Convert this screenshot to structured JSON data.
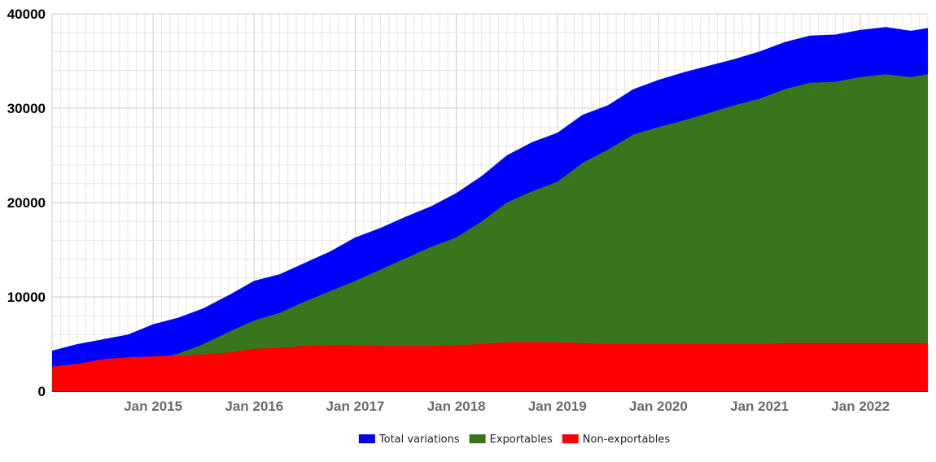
{
  "chart_data": {
    "type": "area",
    "stacked": false,
    "title": "",
    "xlabel": "",
    "ylabel": "",
    "x_start": "2014-01",
    "x_end": "2022-09",
    "xlim": [
      "2014-01",
      "2022-09"
    ],
    "ylim": [
      0,
      40000
    ],
    "grid": true,
    "legend_position": "bottom",
    "x_tick_labels": [
      {
        "date": "2015-01",
        "label": "Jan 2015"
      },
      {
        "date": "2016-01",
        "label": "Jan 2016"
      },
      {
        "date": "2017-01",
        "label": "Jan 2017"
      },
      {
        "date": "2018-01",
        "label": "Jan 2018"
      },
      {
        "date": "2019-01",
        "label": "Jan 2019"
      },
      {
        "date": "2020-01",
        "label": "Jan 2020"
      },
      {
        "date": "2021-01",
        "label": "Jan 2021"
      },
      {
        "date": "2022-01",
        "label": "Jan 2022"
      }
    ],
    "y_ticks": [
      {
        "value": 0,
        "label": "0"
      },
      {
        "value": 10000,
        "label": "10000"
      },
      {
        "value": 20000,
        "label": "20000"
      },
      {
        "value": 30000,
        "label": "30000"
      },
      {
        "value": 40000,
        "label": "40000"
      }
    ],
    "series": [
      {
        "name": "Total variations",
        "color": "#0000ff",
        "points": [
          [
            "2014-01",
            4300
          ],
          [
            "2014-04",
            5000
          ],
          [
            "2014-07",
            5500
          ],
          [
            "2014-10",
            6000
          ],
          [
            "2015-01",
            7100
          ],
          [
            "2015-04",
            7800
          ],
          [
            "2015-07",
            8800
          ],
          [
            "2015-10",
            10200
          ],
          [
            "2016-01",
            11700
          ],
          [
            "2016-04",
            12400
          ],
          [
            "2016-07",
            13600
          ],
          [
            "2016-10",
            14800
          ],
          [
            "2017-01",
            16300
          ],
          [
            "2017-04",
            17300
          ],
          [
            "2017-07",
            18500
          ],
          [
            "2017-10",
            19600
          ],
          [
            "2018-01",
            21000
          ],
          [
            "2018-04",
            22800
          ],
          [
            "2018-07",
            25000
          ],
          [
            "2018-10",
            26400
          ],
          [
            "2019-01",
            27400
          ],
          [
            "2019-04",
            29300
          ],
          [
            "2019-07",
            30300
          ],
          [
            "2019-10",
            32000
          ],
          [
            "2020-01",
            33000
          ],
          [
            "2020-04",
            33800
          ],
          [
            "2020-07",
            34500
          ],
          [
            "2020-10",
            35200
          ],
          [
            "2021-01",
            36000
          ],
          [
            "2021-04",
            37000
          ],
          [
            "2021-07",
            37700
          ],
          [
            "2021-10",
            37800
          ],
          [
            "2022-01",
            38300
          ],
          [
            "2022-04",
            38600
          ],
          [
            "2022-07",
            38200
          ],
          [
            "2022-09",
            38500
          ]
        ]
      },
      {
        "name": "Exportables",
        "color": "#38761d",
        "points": [
          [
            "2014-01",
            1600
          ],
          [
            "2014-04",
            2200
          ],
          [
            "2014-07",
            2300
          ],
          [
            "2014-10",
            2500
          ],
          [
            "2015-01",
            3400
          ],
          [
            "2015-04",
            4000
          ],
          [
            "2015-07",
            5000
          ],
          [
            "2015-10",
            6300
          ],
          [
            "2016-01",
            7500
          ],
          [
            "2016-04",
            8300
          ],
          [
            "2016-07",
            9500
          ],
          [
            "2016-10",
            10600
          ],
          [
            "2017-01",
            11700
          ],
          [
            "2017-04",
            12900
          ],
          [
            "2017-07",
            14100
          ],
          [
            "2017-10",
            15300
          ],
          [
            "2018-01",
            16300
          ],
          [
            "2018-04",
            18000
          ],
          [
            "2018-07",
            20000
          ],
          [
            "2018-10",
            21200
          ],
          [
            "2019-01",
            22200
          ],
          [
            "2019-04",
            24200
          ],
          [
            "2019-07",
            25600
          ],
          [
            "2019-10",
            27200
          ],
          [
            "2020-01",
            28000
          ],
          [
            "2020-04",
            28700
          ],
          [
            "2020-07",
            29500
          ],
          [
            "2020-10",
            30300
          ],
          [
            "2021-01",
            31000
          ],
          [
            "2021-04",
            32000
          ],
          [
            "2021-07",
            32700
          ],
          [
            "2021-10",
            32800
          ],
          [
            "2022-01",
            33300
          ],
          [
            "2022-04",
            33600
          ],
          [
            "2022-07",
            33300
          ],
          [
            "2022-09",
            33600
          ]
        ]
      },
      {
        "name": "Non-exportables",
        "color": "#ff0000",
        "points": [
          [
            "2014-01",
            2600
          ],
          [
            "2014-04",
            2900
          ],
          [
            "2014-07",
            3400
          ],
          [
            "2014-10",
            3600
          ],
          [
            "2015-01",
            3700
          ],
          [
            "2015-04",
            3800
          ],
          [
            "2015-07",
            3900
          ],
          [
            "2015-10",
            4100
          ],
          [
            "2016-01",
            4500
          ],
          [
            "2016-04",
            4600
          ],
          [
            "2016-07",
            4800
          ],
          [
            "2016-10",
            4900
          ],
          [
            "2017-01",
            4900
          ],
          [
            "2017-04",
            4800
          ],
          [
            "2017-07",
            4800
          ],
          [
            "2017-10",
            4800
          ],
          [
            "2018-01",
            4900
          ],
          [
            "2018-04",
            5000
          ],
          [
            "2018-07",
            5200
          ],
          [
            "2018-10",
            5200
          ],
          [
            "2019-01",
            5200
          ],
          [
            "2019-04",
            5100
          ],
          [
            "2019-07",
            5000
          ],
          [
            "2019-10",
            5000
          ],
          [
            "2020-01",
            5000
          ],
          [
            "2020-04",
            5000
          ],
          [
            "2020-07",
            5000
          ],
          [
            "2020-10",
            5000
          ],
          [
            "2021-01",
            5000
          ],
          [
            "2021-04",
            5100
          ],
          [
            "2021-07",
            5100
          ],
          [
            "2021-10",
            5100
          ],
          [
            "2022-01",
            5100
          ],
          [
            "2022-04",
            5100
          ],
          [
            "2022-07",
            5100
          ],
          [
            "2022-09",
            5100
          ]
        ]
      }
    ]
  }
}
